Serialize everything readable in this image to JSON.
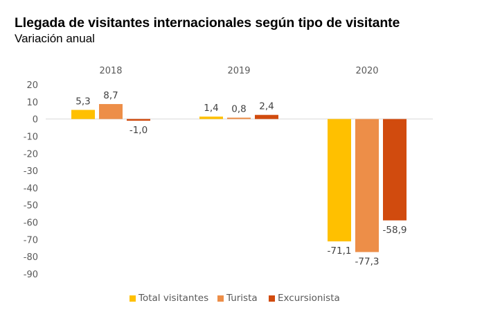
{
  "header": {
    "title": "Llegada de visitantes internacionales según tipo de visitante",
    "subtitle": "Variación anual"
  },
  "chart_data": {
    "type": "bar",
    "title": "Llegada de visitantes internacionales según tipo de visitante",
    "subtitle": "Variación anual",
    "xlabel": "",
    "ylabel": "",
    "categories": [
      "2018",
      "2019",
      "2020"
    ],
    "category_position": "top",
    "series": [
      {
        "name": "Total visitantes",
        "color": "#FFC000",
        "values": [
          5.3,
          1.4,
          -71.1
        ],
        "labels": [
          "5,3",
          "1,4",
          "-71,1"
        ]
      },
      {
        "name": "Turista",
        "color": "#ED8E48",
        "values": [
          8.7,
          0.8,
          -77.3
        ],
        "labels": [
          "8,7",
          "0,8",
          "-77,3"
        ]
      },
      {
        "name": "Excursionista",
        "color": "#D14B0E",
        "values": [
          -1.0,
          2.4,
          -58.9
        ],
        "labels": [
          "-1,0",
          "2,4",
          "-58,9"
        ]
      }
    ],
    "ylim": [
      -90,
      20
    ],
    "yticks": [
      20,
      10,
      0,
      -10,
      -20,
      -30,
      -40,
      -50,
      -60,
      -70,
      -80,
      -90
    ],
    "ytick_labels": [
      "20",
      "10",
      "0",
      "-10",
      "-20",
      "-30",
      "-40",
      "-50",
      "-60",
      "-70",
      "-80",
      "-90"
    ],
    "grid": false,
    "legend": "bottom"
  }
}
